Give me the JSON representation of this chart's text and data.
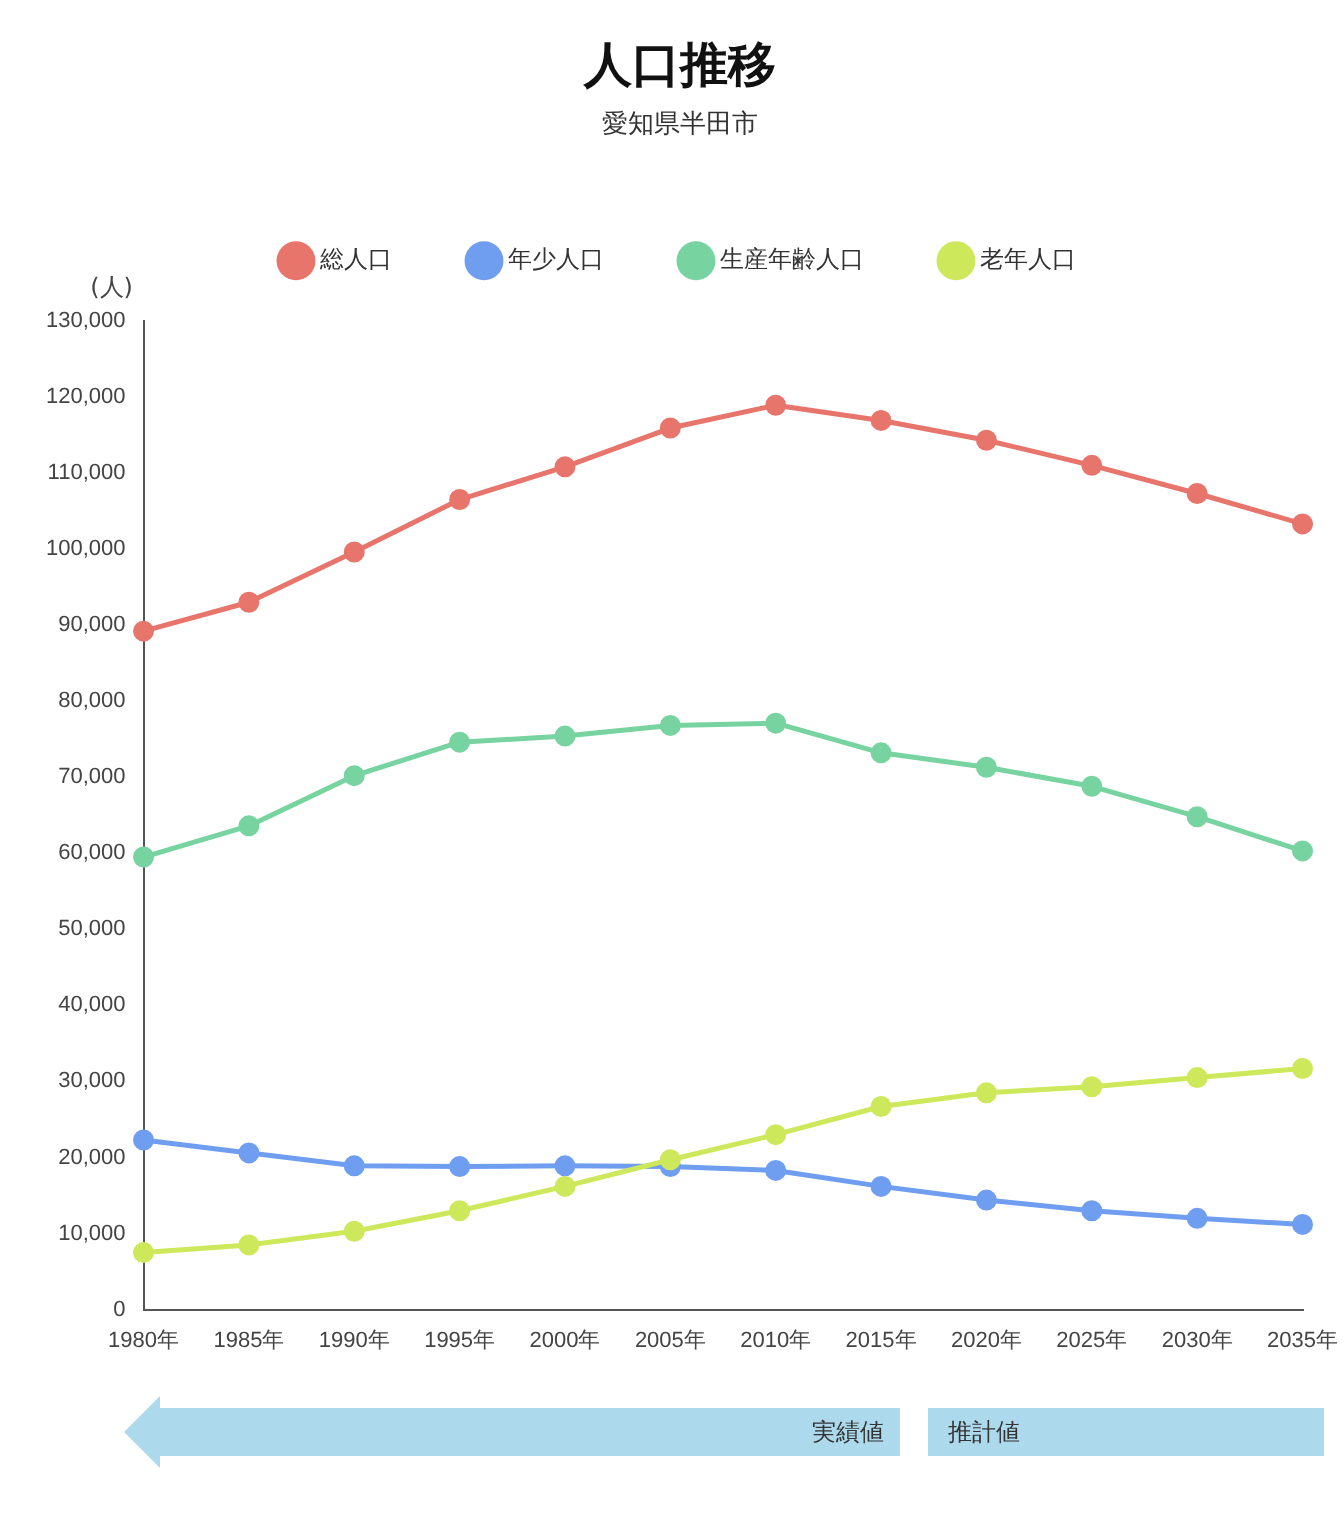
{
  "chart_data": {
    "type": "line",
    "title": "人口推移",
    "subtitle": "愛知県半田市",
    "ylabel": "(人)",
    "categories": [
      "1980年",
      "1985年",
      "1990年",
      "1995年",
      "2000年",
      "2005年",
      "2010年",
      "2015年",
      "2020年",
      "2025年",
      "2030年",
      "2035年"
    ],
    "series": [
      {
        "name": "総人口",
        "color": "#e8756b",
        "values": [
          89200,
          93000,
          99600,
          106500,
          110800,
          115900,
          118900,
          116900,
          114300,
          111000,
          107300,
          103300
        ]
      },
      {
        "name": "年少人口",
        "color": "#6f9ef0",
        "values": [
          22300,
          20600,
          18900,
          18800,
          18900,
          18800,
          18300,
          16200,
          14400,
          13000,
          12000,
          11200
        ]
      },
      {
        "name": "生産年齢人口",
        "color": "#77d3a0",
        "values": [
          59500,
          63600,
          70200,
          74600,
          75400,
          76800,
          77100,
          73200,
          71300,
          68800,
          64800,
          60300
        ]
      },
      {
        "name": "老年人口",
        "color": "#cde85a",
        "values": [
          7500,
          8500,
          10300,
          13000,
          16200,
          19700,
          23000,
          26700,
          28500,
          29300,
          30500,
          31700
        ]
      }
    ],
    "ylim": [
      0,
      130000
    ],
    "yticks": [
      0,
      {
        "value": 10000,
        "label": "10,000"
      },
      {
        "value": 20000,
        "label": "20,000"
      },
      {
        "value": 30000,
        "label": "30,000"
      },
      {
        "value": 40000,
        "label": "40,000"
      },
      {
        "value": 50000,
        "label": "50,000"
      },
      {
        "value": 60000,
        "label": "60,000"
      },
      {
        "value": 70000,
        "label": "70,000"
      },
      {
        "value": 80000,
        "label": "80,000"
      },
      {
        "value": 90000,
        "label": "90,000"
      },
      {
        "value": 100000,
        "label": "100,000"
      },
      {
        "value": 110000,
        "label": "110,000"
      },
      {
        "value": 120000,
        "label": "120,000"
      },
      {
        "value": 130000,
        "label": "130,000"
      }
    ],
    "grid": false,
    "legend": "top",
    "marker": "circle",
    "line_style": "solid",
    "annotations": [
      "実績値",
      "推計値"
    ]
  }
}
